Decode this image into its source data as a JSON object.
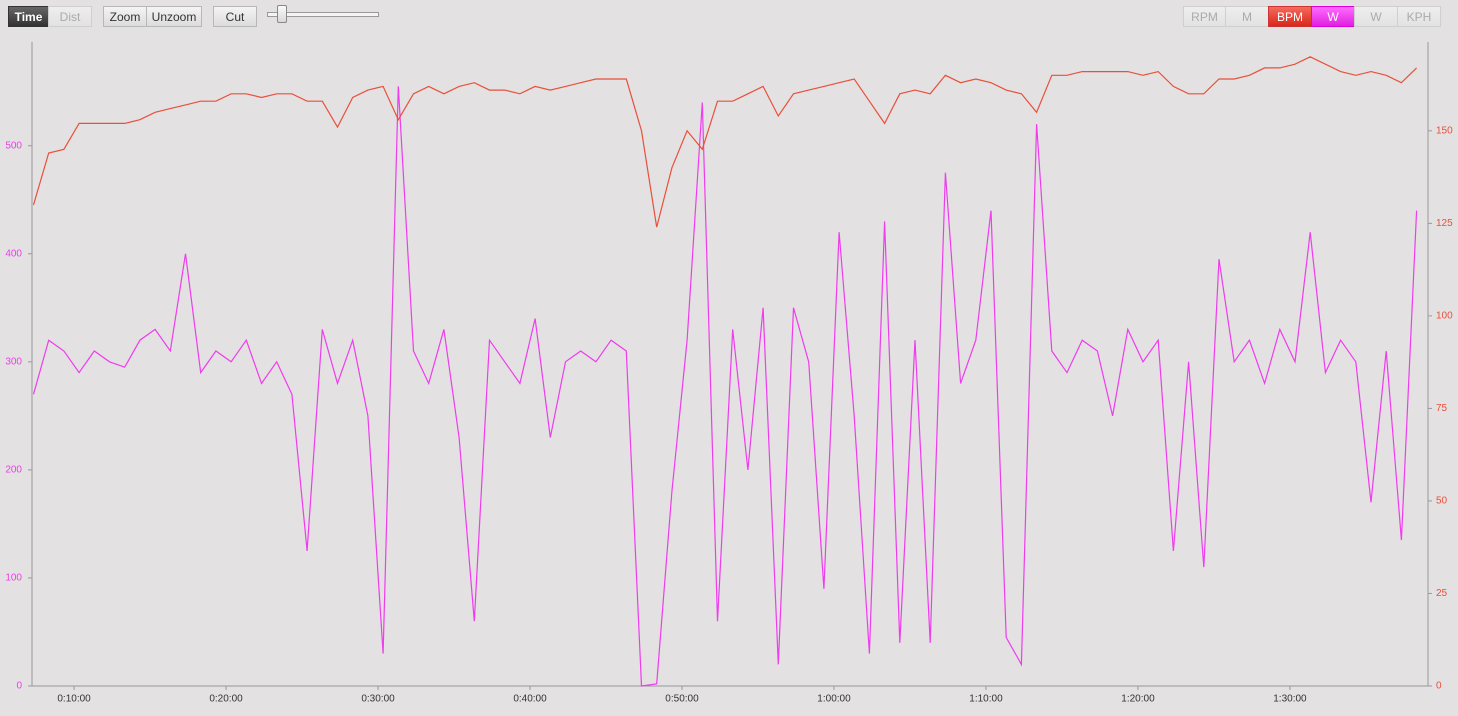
{
  "toolbar": {
    "modes": [
      "Time",
      "Dist"
    ],
    "actions": [
      "Zoom",
      "Unzoom",
      "Cut"
    ],
    "metrics": [
      "RPM",
      "M",
      "W",
      "KPH"
    ]
  },
  "chart_data": {
    "type": "line",
    "x": [
      440,
      500,
      560,
      620,
      680,
      740,
      800,
      860,
      920,
      980,
      1040,
      1100,
      1160,
      1220,
      1280,
      1340,
      1400,
      1460,
      1520,
      1580,
      1640,
      1700,
      1760,
      1820,
      1880,
      1940,
      2000,
      2060,
      2120,
      2180,
      2240,
      2300,
      2360,
      2420,
      2480,
      2540,
      2600,
      2660,
      2720,
      2780,
      2840,
      2900,
      2960,
      3020,
      3080,
      3140,
      3200,
      3260,
      3320,
      3380,
      3440,
      3500,
      3560,
      3620,
      3680,
      3740,
      3800,
      3860,
      3920,
      3980,
      4040,
      4100,
      4160,
      4220,
      4280,
      4340,
      4400,
      4460,
      4520,
      4580,
      4640,
      4700,
      4760,
      4820,
      4880,
      4940,
      5000,
      5060,
      5120,
      5180,
      5240,
      5300,
      5360,
      5420,
      5480,
      5540,
      5600,
      5660,
      5720,
      5780,
      5840,
      5900
    ],
    "xlim": [
      434,
      5945
    ],
    "xticks": [
      {
        "value": 600,
        "label": "0:10:00"
      },
      {
        "value": 1200,
        "label": "0:20:00"
      },
      {
        "value": 1800,
        "label": "0:30:00"
      },
      {
        "value": 2400,
        "label": "0:40:00"
      },
      {
        "value": 3000,
        "label": "0:50:00"
      },
      {
        "value": 3600,
        "label": "1:00:00"
      },
      {
        "value": 4200,
        "label": "1:10:00"
      },
      {
        "value": 4800,
        "label": "1:20:00"
      },
      {
        "value": 5400,
        "label": "1:30:00"
      }
    ],
    "ylim": [
      0,
      596
    ],
    "yticks": [
      0,
      100,
      200,
      300,
      400,
      500
    ],
    "y2lim": [
      0,
      174
    ],
    "y2ticks": [
      0,
      25,
      50,
      75,
      100,
      125,
      150
    ],
    "series": [
      {
        "name": "W",
        "color": "#ee3cee",
        "axis": "y",
        "values": [
          270,
          320,
          310,
          290,
          310,
          300,
          295,
          320,
          330,
          310,
          400,
          290,
          310,
          300,
          320,
          280,
          300,
          270,
          125,
          330,
          280,
          320,
          250,
          30,
          555,
          310,
          280,
          330,
          230,
          60,
          320,
          300,
          280,
          340,
          230,
          300,
          310,
          300,
          320,
          310,
          0,
          2,
          180,
          320,
          540,
          60,
          330,
          200,
          350,
          20,
          350,
          300,
          90,
          420,
          250,
          30,
          430,
          40,
          320,
          40,
          475,
          280,
          320,
          440,
          45,
          20,
          520,
          310,
          290,
          320,
          310,
          250,
          330,
          300,
          320,
          125,
          300,
          110,
          395,
          300,
          320,
          280,
          330,
          300,
          420,
          290,
          320,
          300,
          170,
          310,
          135,
          440
        ]
      },
      {
        "name": "BPM",
        "color": "#e8503a",
        "axis": "y2",
        "values": [
          130,
          144,
          145,
          152,
          152,
          152,
          152,
          153,
          155,
          156,
          157,
          158,
          158,
          160,
          160,
          159,
          160,
          160,
          158,
          158,
          151,
          159,
          161,
          162,
          153,
          160,
          162,
          160,
          162,
          163,
          161,
          161,
          160,
          162,
          161,
          162,
          163,
          164,
          164,
          164,
          150,
          124,
          140,
          150,
          145,
          158,
          158,
          160,
          162,
          154,
          160,
          161,
          162,
          163,
          164,
          158,
          152,
          160,
          161,
          160,
          165,
          163,
          164,
          163,
          161,
          160,
          155,
          165,
          165,
          166,
          166,
          166,
          166,
          165,
          166,
          162,
          160,
          160,
          164,
          164,
          165,
          167,
          167,
          168,
          170,
          168,
          166,
          165,
          166,
          165,
          163,
          167
        ]
      }
    ]
  }
}
